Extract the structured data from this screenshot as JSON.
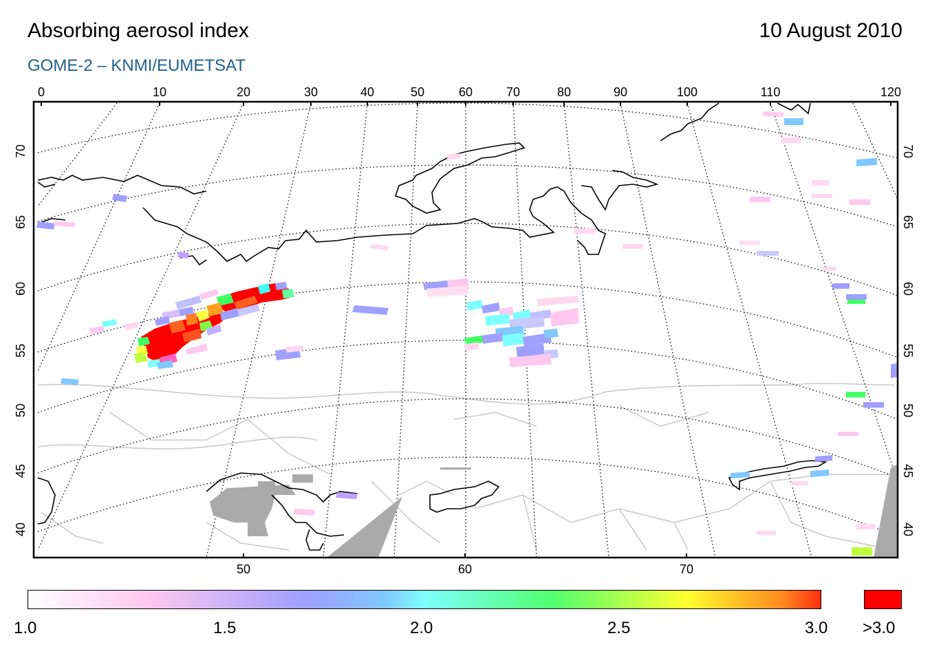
{
  "header": {
    "title": "Absorbing aerosol index",
    "date": "10 August 2010",
    "subtitle": "GOME-2 – KNMI/EUMETSAT"
  },
  "map": {
    "top_lon_labels": [
      "0",
      "10",
      "20",
      "30",
      "40",
      "50",
      "60",
      "70",
      "80",
      "90",
      "100",
      "110",
      "120"
    ],
    "bottom_lon_labels": [
      "50",
      "60",
      "70"
    ],
    "lat_labels": [
      "70",
      "65",
      "60",
      "55",
      "50",
      "45",
      "40"
    ],
    "colors": {
      "frame": "#000000",
      "coastline": "#000000",
      "borders": "#c8c8c8",
      "no_data": "#aaaaaa"
    }
  },
  "colorbar": {
    "tick_labels": [
      "1.0",
      "1.5",
      "2.0",
      "2.5",
      "3.0"
    ],
    "over_label": ">3.0",
    "over_color": "#ff0000",
    "colors": [
      "#ffffff",
      "#ffc8f0",
      "#9f9fff",
      "#7fffff",
      "#50ff70",
      "#ffff30",
      "#ff3010"
    ]
  }
}
